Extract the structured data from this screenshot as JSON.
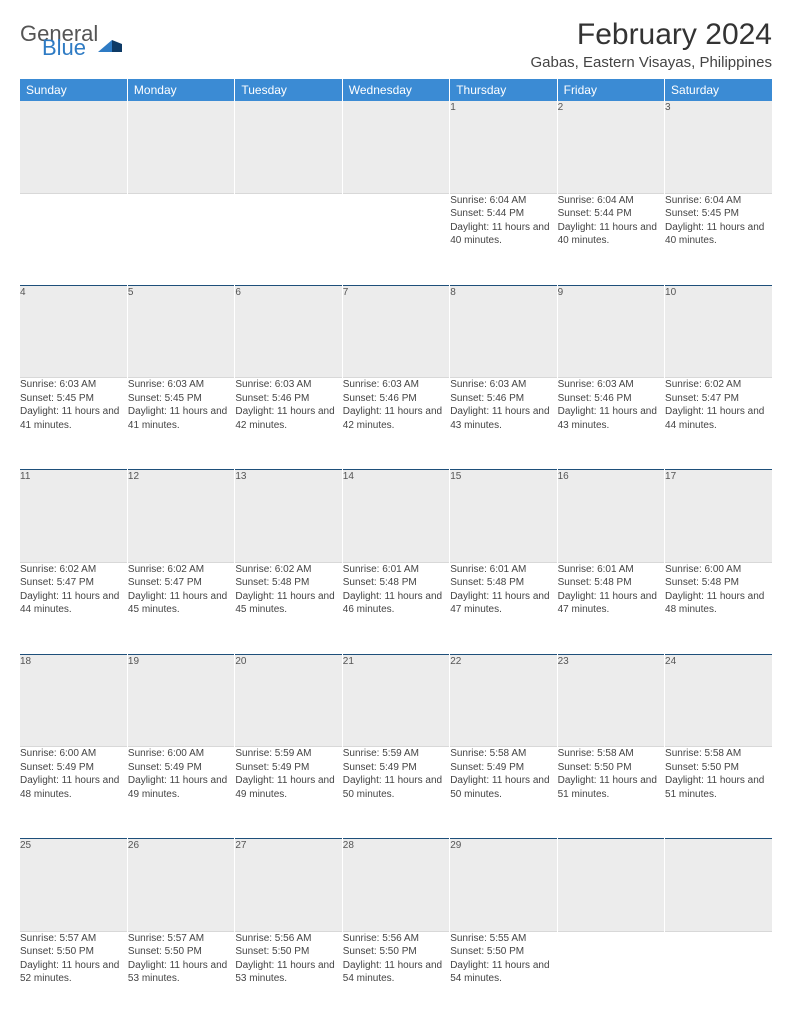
{
  "brand": {
    "part1": "General",
    "part2": "Blue",
    "brand_color": "#2e7bc4"
  },
  "title": "February 2024",
  "location": "Gabas, Eastern Visayas, Philippines",
  "colors": {
    "header_bg": "#3b8bd4",
    "header_text": "#ffffff",
    "daynum_bg": "#ececec",
    "week_border": "#1e4f7a",
    "text": "#444444"
  },
  "typography": {
    "title_fontsize": 30,
    "location_fontsize": 15,
    "dayhead_fontsize": 12,
    "body_fontsize": 10
  },
  "day_headers": [
    "Sunday",
    "Monday",
    "Tuesday",
    "Wednesday",
    "Thursday",
    "Friday",
    "Saturday"
  ],
  "weeks": [
    [
      null,
      null,
      null,
      null,
      {
        "n": "1",
        "sr": "Sunrise: 6:04 AM",
        "ss": "Sunset: 5:44 PM",
        "dl": "Daylight: 11 hours and 40 minutes."
      },
      {
        "n": "2",
        "sr": "Sunrise: 6:04 AM",
        "ss": "Sunset: 5:44 PM",
        "dl": "Daylight: 11 hours and 40 minutes."
      },
      {
        "n": "3",
        "sr": "Sunrise: 6:04 AM",
        "ss": "Sunset: 5:45 PM",
        "dl": "Daylight: 11 hours and 40 minutes."
      }
    ],
    [
      {
        "n": "4",
        "sr": "Sunrise: 6:03 AM",
        "ss": "Sunset: 5:45 PM",
        "dl": "Daylight: 11 hours and 41 minutes."
      },
      {
        "n": "5",
        "sr": "Sunrise: 6:03 AM",
        "ss": "Sunset: 5:45 PM",
        "dl": "Daylight: 11 hours and 41 minutes."
      },
      {
        "n": "6",
        "sr": "Sunrise: 6:03 AM",
        "ss": "Sunset: 5:46 PM",
        "dl": "Daylight: 11 hours and 42 minutes."
      },
      {
        "n": "7",
        "sr": "Sunrise: 6:03 AM",
        "ss": "Sunset: 5:46 PM",
        "dl": "Daylight: 11 hours and 42 minutes."
      },
      {
        "n": "8",
        "sr": "Sunrise: 6:03 AM",
        "ss": "Sunset: 5:46 PM",
        "dl": "Daylight: 11 hours and 43 minutes."
      },
      {
        "n": "9",
        "sr": "Sunrise: 6:03 AM",
        "ss": "Sunset: 5:46 PM",
        "dl": "Daylight: 11 hours and 43 minutes."
      },
      {
        "n": "10",
        "sr": "Sunrise: 6:02 AM",
        "ss": "Sunset: 5:47 PM",
        "dl": "Daylight: 11 hours and 44 minutes."
      }
    ],
    [
      {
        "n": "11",
        "sr": "Sunrise: 6:02 AM",
        "ss": "Sunset: 5:47 PM",
        "dl": "Daylight: 11 hours and 44 minutes."
      },
      {
        "n": "12",
        "sr": "Sunrise: 6:02 AM",
        "ss": "Sunset: 5:47 PM",
        "dl": "Daylight: 11 hours and 45 minutes."
      },
      {
        "n": "13",
        "sr": "Sunrise: 6:02 AM",
        "ss": "Sunset: 5:48 PM",
        "dl": "Daylight: 11 hours and 45 minutes."
      },
      {
        "n": "14",
        "sr": "Sunrise: 6:01 AM",
        "ss": "Sunset: 5:48 PM",
        "dl": "Daylight: 11 hours and 46 minutes."
      },
      {
        "n": "15",
        "sr": "Sunrise: 6:01 AM",
        "ss": "Sunset: 5:48 PM",
        "dl": "Daylight: 11 hours and 47 minutes."
      },
      {
        "n": "16",
        "sr": "Sunrise: 6:01 AM",
        "ss": "Sunset: 5:48 PM",
        "dl": "Daylight: 11 hours and 47 minutes."
      },
      {
        "n": "17",
        "sr": "Sunrise: 6:00 AM",
        "ss": "Sunset: 5:48 PM",
        "dl": "Daylight: 11 hours and 48 minutes."
      }
    ],
    [
      {
        "n": "18",
        "sr": "Sunrise: 6:00 AM",
        "ss": "Sunset: 5:49 PM",
        "dl": "Daylight: 11 hours and 48 minutes."
      },
      {
        "n": "19",
        "sr": "Sunrise: 6:00 AM",
        "ss": "Sunset: 5:49 PM",
        "dl": "Daylight: 11 hours and 49 minutes."
      },
      {
        "n": "20",
        "sr": "Sunrise: 5:59 AM",
        "ss": "Sunset: 5:49 PM",
        "dl": "Daylight: 11 hours and 49 minutes."
      },
      {
        "n": "21",
        "sr": "Sunrise: 5:59 AM",
        "ss": "Sunset: 5:49 PM",
        "dl": "Daylight: 11 hours and 50 minutes."
      },
      {
        "n": "22",
        "sr": "Sunrise: 5:58 AM",
        "ss": "Sunset: 5:49 PM",
        "dl": "Daylight: 11 hours and 50 minutes."
      },
      {
        "n": "23",
        "sr": "Sunrise: 5:58 AM",
        "ss": "Sunset: 5:50 PM",
        "dl": "Daylight: 11 hours and 51 minutes."
      },
      {
        "n": "24",
        "sr": "Sunrise: 5:58 AM",
        "ss": "Sunset: 5:50 PM",
        "dl": "Daylight: 11 hours and 51 minutes."
      }
    ],
    [
      {
        "n": "25",
        "sr": "Sunrise: 5:57 AM",
        "ss": "Sunset: 5:50 PM",
        "dl": "Daylight: 11 hours and 52 minutes."
      },
      {
        "n": "26",
        "sr": "Sunrise: 5:57 AM",
        "ss": "Sunset: 5:50 PM",
        "dl": "Daylight: 11 hours and 53 minutes."
      },
      {
        "n": "27",
        "sr": "Sunrise: 5:56 AM",
        "ss": "Sunset: 5:50 PM",
        "dl": "Daylight: 11 hours and 53 minutes."
      },
      {
        "n": "28",
        "sr": "Sunrise: 5:56 AM",
        "ss": "Sunset: 5:50 PM",
        "dl": "Daylight: 11 hours and 54 minutes."
      },
      {
        "n": "29",
        "sr": "Sunrise: 5:55 AM",
        "ss": "Sunset: 5:50 PM",
        "dl": "Daylight: 11 hours and 54 minutes."
      },
      null,
      null
    ]
  ]
}
